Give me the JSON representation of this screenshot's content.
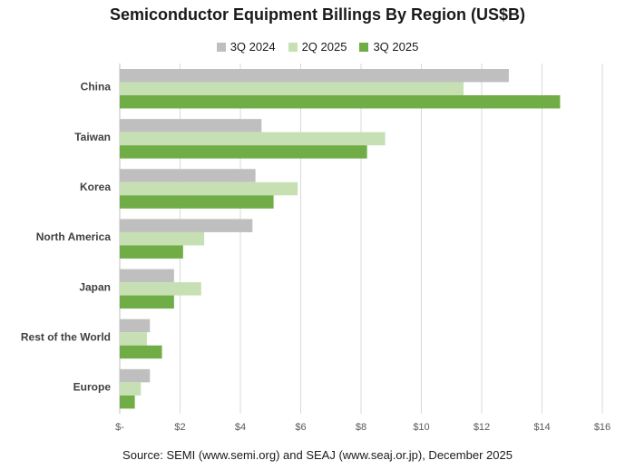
{
  "chart_data": {
    "type": "bar",
    "orientation": "horizontal",
    "title": "Semiconductor Equipment Billings By Region (US$B)",
    "categories": [
      "China",
      "Taiwan",
      "Korea",
      "North America",
      "Japan",
      "Rest of the World",
      "Europe"
    ],
    "series": [
      {
        "name": "3Q 2024",
        "color": "#bfbfbf",
        "values": [
          12.9,
          4.7,
          4.5,
          4.4,
          1.8,
          1.0,
          1.0
        ]
      },
      {
        "name": "2Q 2025",
        "color": "#c6e0b4",
        "values": [
          11.4,
          8.8,
          5.9,
          2.8,
          2.7,
          0.9,
          0.7
        ]
      },
      {
        "name": "3Q 2025",
        "color": "#70ad47",
        "values": [
          14.6,
          8.2,
          5.1,
          2.1,
          1.8,
          1.4,
          0.5
        ]
      }
    ],
    "x_ticks": [
      "$-",
      "$2",
      "$4",
      "$6",
      "$8",
      "$10",
      "$12",
      "$14",
      "$16"
    ],
    "xlim": [
      0,
      16
    ],
    "grid": "vertical",
    "legend": "top-center",
    "source": "Source: SEMI (www.semi.org) and SEAJ (www.seaj.or.jp), December 2025"
  }
}
